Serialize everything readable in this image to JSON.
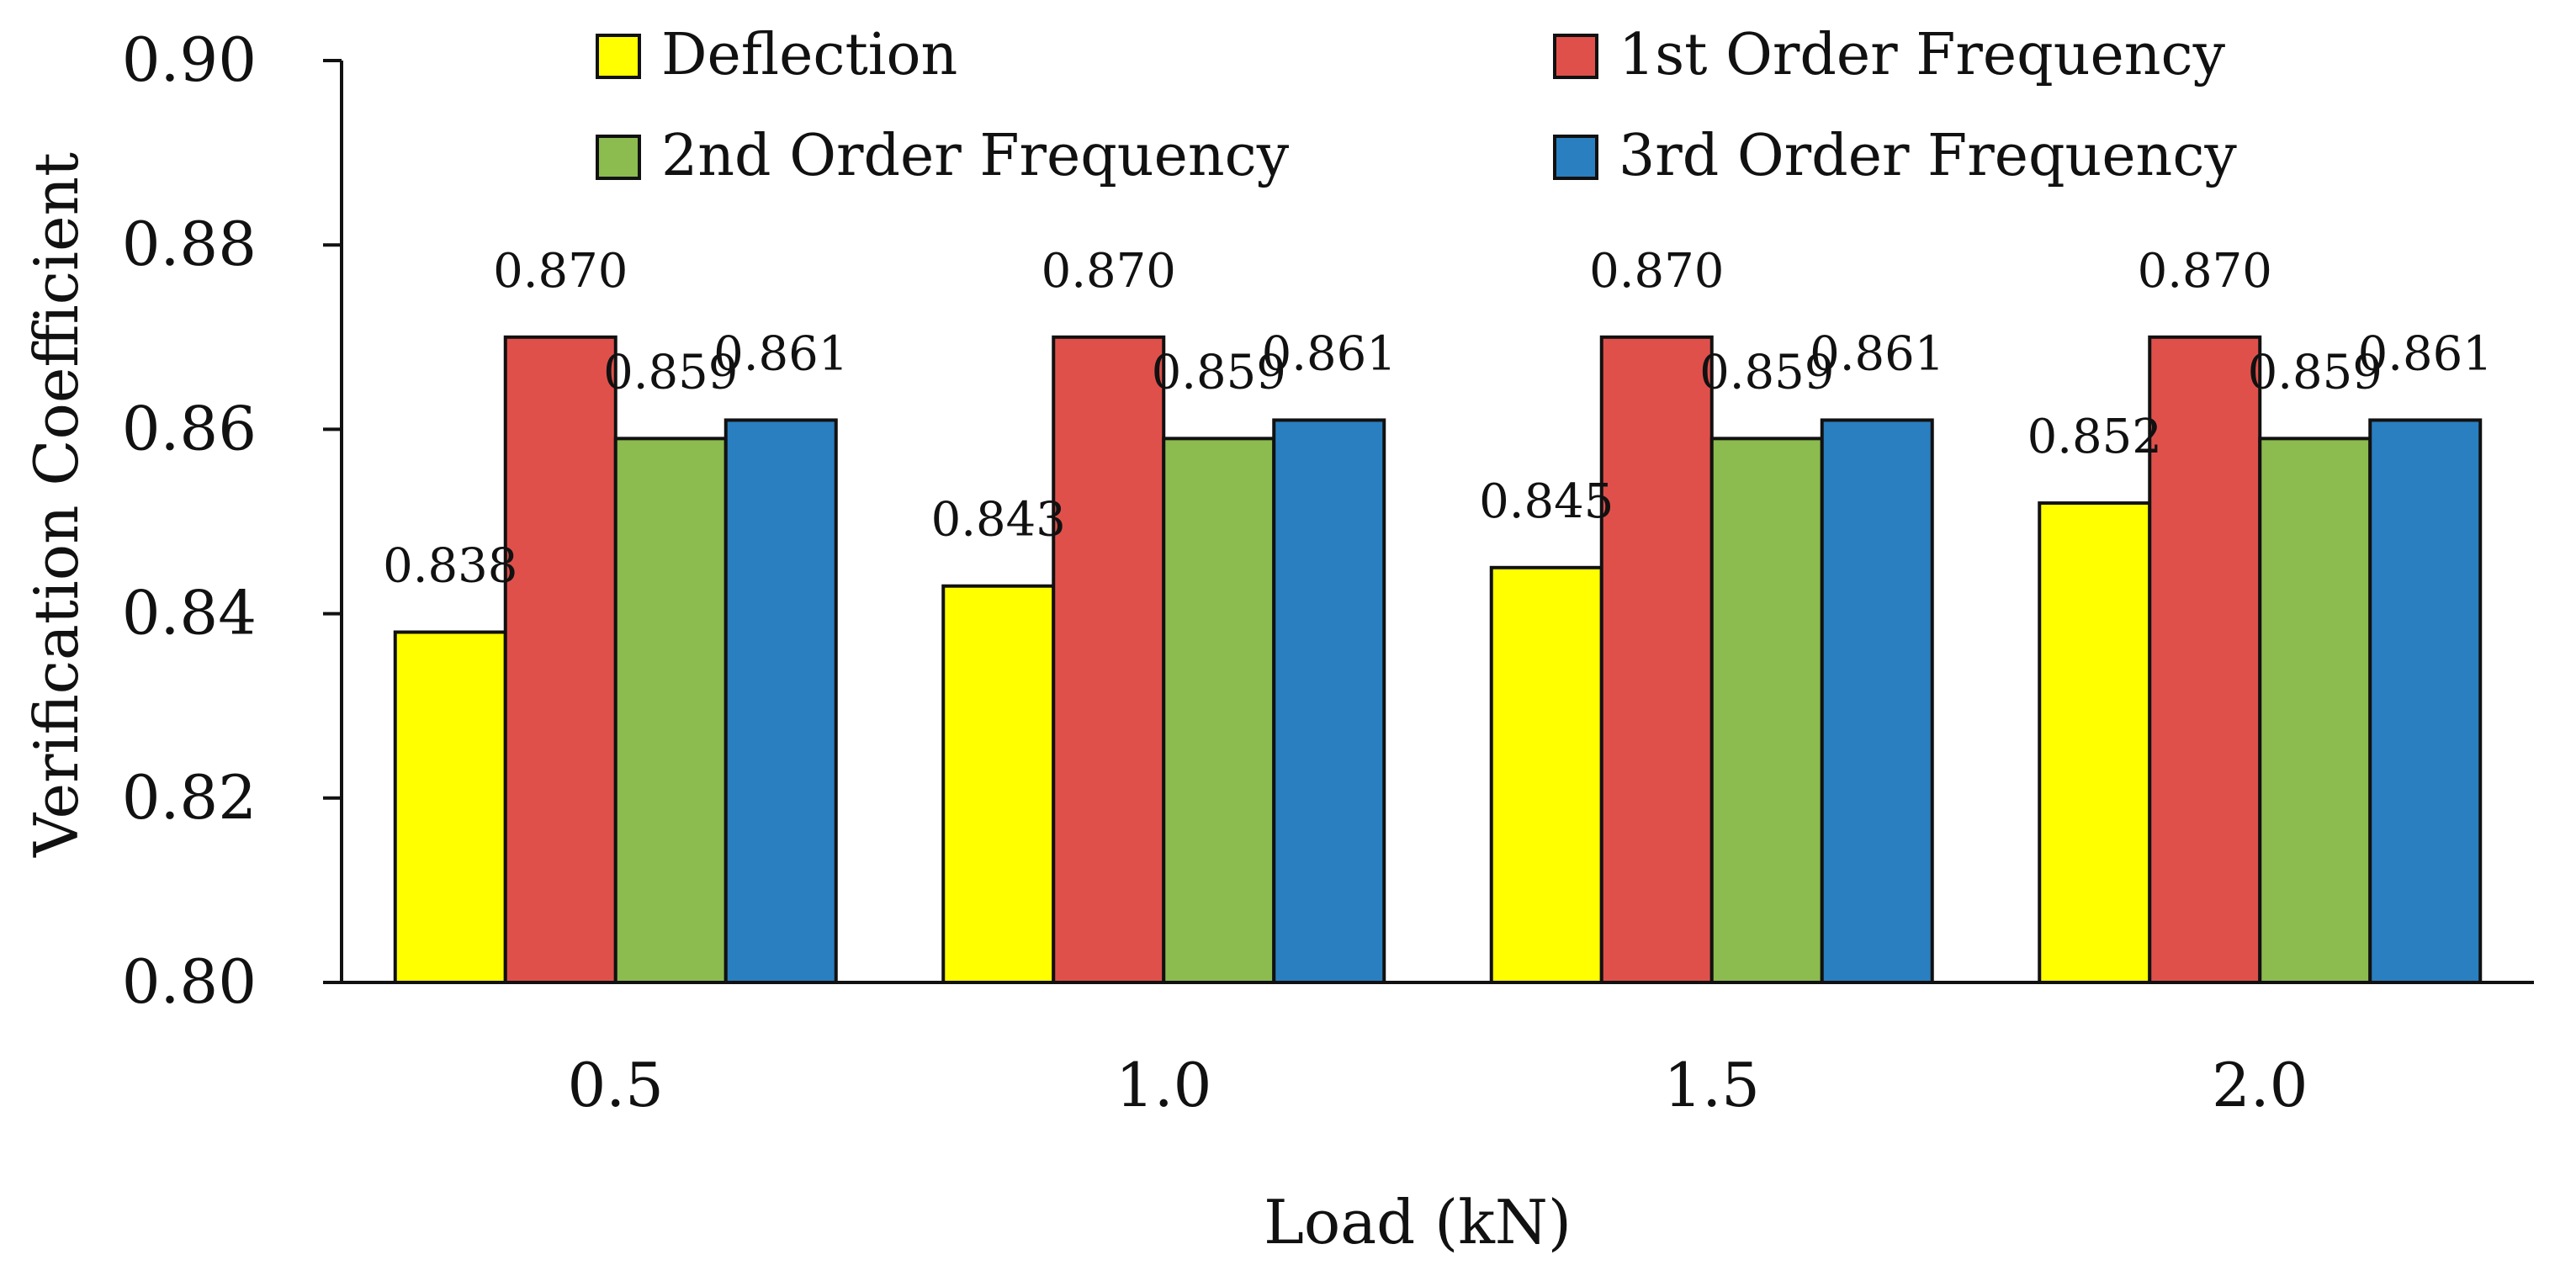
{
  "chart_data": {
    "type": "bar",
    "title": "",
    "xlabel": "Load (kN)",
    "ylabel": "Verification Coefficient",
    "categories": [
      "0.5",
      "1.0",
      "1.5",
      "2.0"
    ],
    "ylim": [
      0.8,
      0.9
    ],
    "yticks": [
      "0.80",
      "0.82",
      "0.84",
      "0.86",
      "0.88",
      "0.90"
    ],
    "grid": false,
    "legend_position": "top",
    "series": [
      {
        "name": "Deflection",
        "color": "#FFFF00",
        "values": [
          0.838,
          0.843,
          0.845,
          0.852
        ],
        "labels": [
          "0.838",
          "0.843",
          "0.845",
          "0.852"
        ]
      },
      {
        "name": "1st Order Frequency",
        "color": "#E0504B",
        "values": [
          0.87,
          0.87,
          0.87,
          0.87
        ],
        "labels": [
          "0.870",
          "0.870",
          "0.870",
          "0.870"
        ]
      },
      {
        "name": "2nd Order Frequency",
        "color": "#8CBB4F",
        "values": [
          0.859,
          0.859,
          0.859,
          0.859
        ],
        "labels": [
          "0.859",
          "0.859",
          "0.859",
          "0.859"
        ]
      },
      {
        "name": "3rd Order Frequency",
        "color": "#2A7FC0",
        "values": [
          0.861,
          0.861,
          0.861,
          0.861
        ],
        "labels": [
          "0.861",
          "0.861",
          "0.861",
          "0.861"
        ]
      }
    ]
  }
}
